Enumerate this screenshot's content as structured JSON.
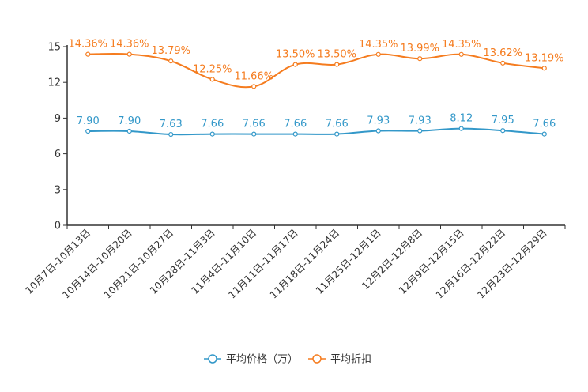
{
  "chart_data": {
    "type": "line",
    "title": "",
    "xlabel": "",
    "ylabel": "",
    "ylim": [
      0,
      15
    ],
    "yticks": [
      0,
      3,
      6,
      9,
      12,
      15
    ],
    "grid": false,
    "legend_position": "bottom-center",
    "categories": [
      "10月7日-10月13日",
      "10月14日-10月20日",
      "10月21日-10月27日",
      "10月28日-11月3日",
      "11月4日-11月10日",
      "11月11日-11月17日",
      "11月18日-11月24日",
      "11月25日-12月1日",
      "12月2日-12月8日",
      "12月9日-12月15日",
      "12月16日-12月22日",
      "12月23日-12月29日"
    ],
    "series": [
      {
        "name": "平均价格（万）",
        "color": "#3398c9",
        "values": [
          7.9,
          7.9,
          7.63,
          7.66,
          7.66,
          7.66,
          7.66,
          7.93,
          7.93,
          8.12,
          7.95,
          7.66
        ],
        "labels": [
          "7.90",
          "7.90",
          "7.63",
          "7.66",
          "7.66",
          "7.66",
          "7.66",
          "7.93",
          "7.93",
          "8.12",
          "7.95",
          "7.66"
        ]
      },
      {
        "name": "平均折扣",
        "color": "#f57c1f",
        "values": [
          14.36,
          14.36,
          13.79,
          12.25,
          11.66,
          13.5,
          13.5,
          14.35,
          13.99,
          14.35,
          13.62,
          13.19
        ],
        "labels": [
          "14.36%",
          "14.36%",
          "13.79%",
          "12.25%",
          "11.66%",
          "13.50%",
          "13.50%",
          "14.35%",
          "13.99%",
          "14.35%",
          "13.62%",
          "13.19%"
        ]
      }
    ]
  }
}
